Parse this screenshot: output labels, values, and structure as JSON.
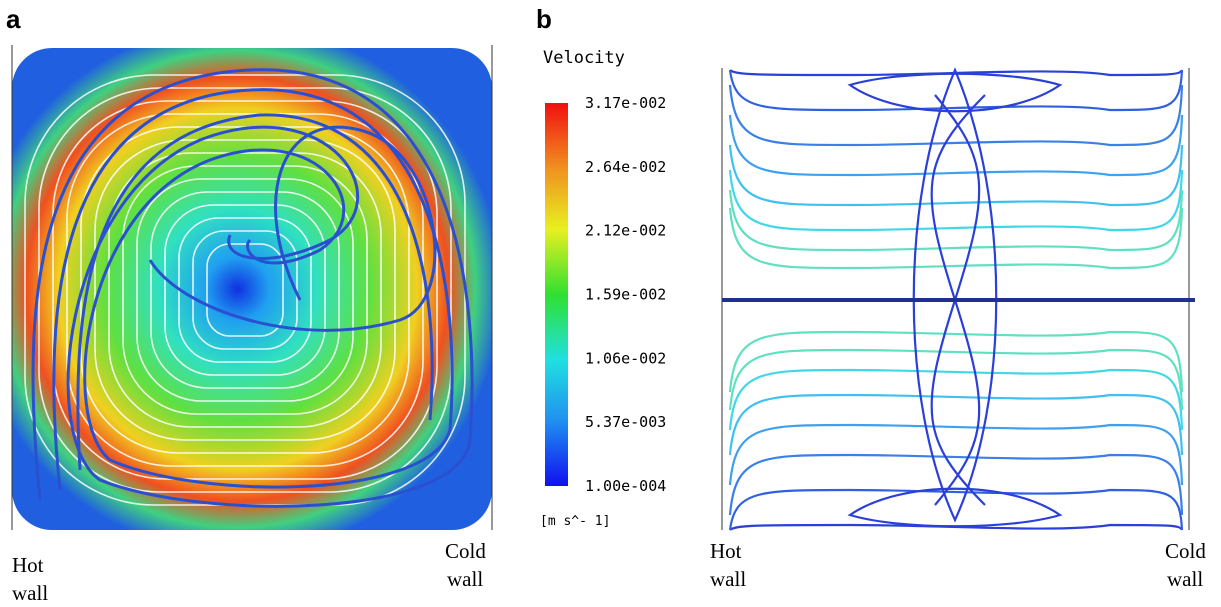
{
  "panels": {
    "a": {
      "label": "a",
      "left_wall": [
        "Hot",
        "wall"
      ],
      "right_wall": [
        "Cold",
        "wall"
      ]
    },
    "b": {
      "label": "b",
      "left_wall": [
        "Hot",
        "wall"
      ],
      "right_wall": [
        "Cold",
        "wall"
      ]
    }
  },
  "colorbar": {
    "title": "Velocity",
    "tick_labels": [
      "3.17e-002",
      "2.64e-002",
      "2.12e-002",
      "1.59e-002",
      "1.06e-002",
      "5.37e-003",
      "1.00e-004"
    ],
    "units": "[m s^- 1]"
  }
}
